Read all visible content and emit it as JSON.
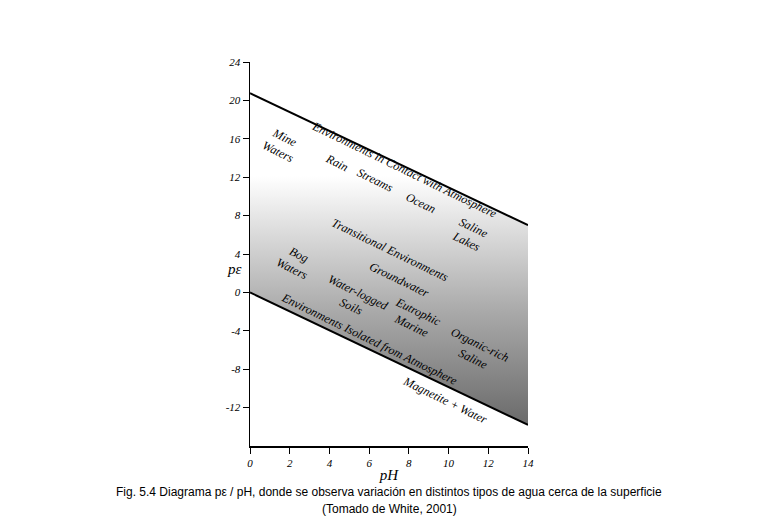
{
  "chart_data": {
    "type": "line",
    "caption": [
      "Fig. 5.4 Diagrama pε / pH, donde se observa variación en distintos tipos de agua cerca de la superficie",
      "(Tomado de White, 2001)"
    ],
    "x_label": "pH",
    "y_label": "pε",
    "xlim": [
      0,
      14
    ],
    "ylim": [
      -16,
      24
    ],
    "xticks": [
      0,
      2,
      4,
      6,
      8,
      10,
      12,
      14
    ],
    "yticks": [
      -12,
      -8,
      -4,
      0,
      4,
      8,
      12,
      16,
      20,
      24
    ],
    "grid": false,
    "series": [
      {
        "x": [
          0,
          14
        ],
        "values": [
          0,
          -13.8
        ],
        "color": "#000000"
      },
      {
        "x": [
          0,
          14
        ],
        "values": [
          20.75,
          7.0
        ],
        "color": "#000000"
      }
    ],
    "annotations": [
      {
        "text": "Environments in Contact with Atmosphere",
        "x": 7.8,
        "y": 12.7
      },
      {
        "text": "Mine\nWaters",
        "x": 1.6,
        "y": 15.4
      },
      {
        "text": "Rain",
        "x": 4.4,
        "y": 13.5
      },
      {
        "text": "Streams",
        "x": 6.3,
        "y": 11.7
      },
      {
        "text": "Ocean",
        "x": 8.6,
        "y": 9.3
      },
      {
        "text": "Saline\nLakes",
        "x": 11.1,
        "y": 6.0
      },
      {
        "text": "Transitional Environments",
        "x": 7.05,
        "y": 4.4
      },
      {
        "text": "Groundwater",
        "x": 7.55,
        "y": 1.3
      },
      {
        "text": "Bog\nWaters",
        "x": 2.3,
        "y": 3.2
      },
      {
        "text": "Water-logged\nSoils",
        "x": 5.3,
        "y": -0.8
      },
      {
        "text": "Eutrophic\nMarine",
        "x": 8.3,
        "y": -2.8
      },
      {
        "text": "Organic-rich\nSaline",
        "x": 11.4,
        "y": -6.2
      },
      {
        "text": "Environments Isolated from Atmosphere",
        "x": 6.0,
        "y": -4.9
      },
      {
        "text": "Magnetite + Water",
        "x": 9.8,
        "y": -11.2
      }
    ]
  }
}
